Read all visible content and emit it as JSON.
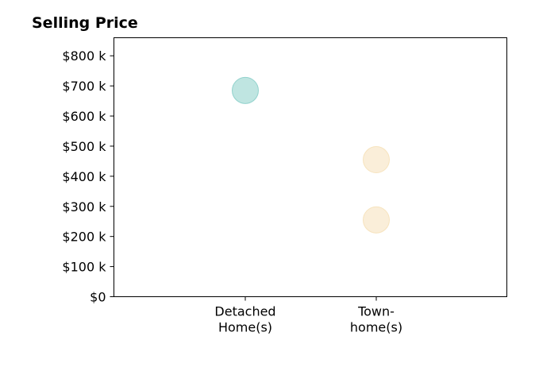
{
  "chart_data": {
    "type": "scatter",
    "title": "Selling Price",
    "xlabel": "",
    "ylabel": "",
    "categories": [
      "Detached\nHome(s)",
      "Town-\nhome(s)"
    ],
    "ylim": [
      0,
      860000
    ],
    "yticks": [
      0,
      100000,
      200000,
      300000,
      400000,
      500000,
      600000,
      700000,
      800000
    ],
    "ytick_labels": [
      "$0",
      "$100 k",
      "$200 k",
      "$300 k",
      "$400 k",
      "$500 k",
      "$600 k",
      "$700 k",
      "$800 k"
    ],
    "grid": false,
    "series": [
      {
        "category": "Detached\nHome(s)",
        "color": "#80cbc4",
        "points": [
          685000
        ]
      },
      {
        "category": "Town-\nhome(s)",
        "color": "#f5deb3",
        "points": [
          455000,
          255000
        ]
      }
    ]
  }
}
